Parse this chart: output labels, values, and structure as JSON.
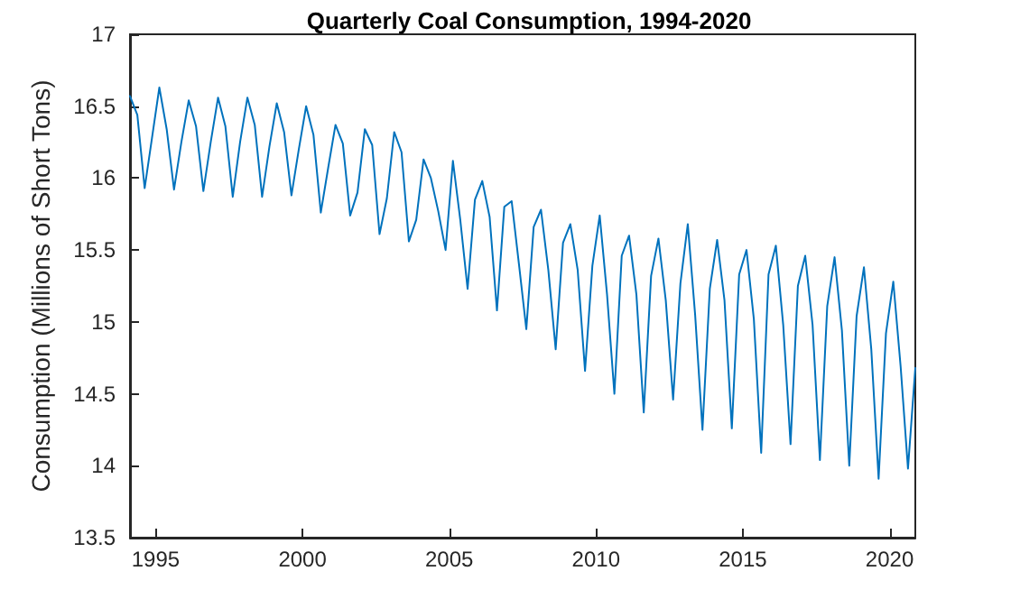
{
  "chart_data": {
    "type": "line",
    "title": "Quarterly Coal Consumption, 1994-2020",
    "ylabel": "Consumption (Millions of Short Tons)",
    "x": [
      1994.125,
      1994.375,
      1994.625,
      1994.875,
      1995.125,
      1995.375,
      1995.625,
      1995.875,
      1996.125,
      1996.375,
      1996.625,
      1996.875,
      1997.125,
      1997.375,
      1997.625,
      1997.875,
      1998.125,
      1998.375,
      1998.625,
      1998.875,
      1999.125,
      1999.375,
      1999.625,
      1999.875,
      2000.125,
      2000.375,
      2000.625,
      2000.875,
      2001.125,
      2001.375,
      2001.625,
      2001.875,
      2002.125,
      2002.375,
      2002.625,
      2002.875,
      2003.125,
      2003.375,
      2003.625,
      2003.875,
      2004.125,
      2004.375,
      2004.625,
      2004.875,
      2005.125,
      2005.375,
      2005.625,
      2005.875,
      2006.125,
      2006.375,
      2006.625,
      2006.875,
      2007.125,
      2007.375,
      2007.625,
      2007.875,
      2008.125,
      2008.375,
      2008.625,
      2008.875,
      2009.125,
      2009.375,
      2009.625,
      2009.875,
      2010.125,
      2010.375,
      2010.625,
      2010.875,
      2011.125,
      2011.375,
      2011.625,
      2011.875,
      2012.125,
      2012.375,
      2012.625,
      2012.875,
      2013.125,
      2013.375,
      2013.625,
      2013.875,
      2014.125,
      2014.375,
      2014.625,
      2014.875,
      2015.125,
      2015.375,
      2015.625,
      2015.875,
      2016.125,
      2016.375,
      2016.625,
      2016.875,
      2017.125,
      2017.375,
      2017.625,
      2017.875,
      2018.125,
      2018.375,
      2018.625,
      2018.875,
      2019.125,
      2019.375,
      2019.625,
      2019.875,
      2020.125,
      2020.375,
      2020.625,
      2020.875
    ],
    "series": [
      {
        "color": "#0072bd",
        "values": [
          16.57,
          16.44,
          15.93,
          16.28,
          16.63,
          16.34,
          15.92,
          16.25,
          16.54,
          16.36,
          15.91,
          16.25,
          16.56,
          16.36,
          15.87,
          16.25,
          16.56,
          16.37,
          15.87,
          16.22,
          16.52,
          16.32,
          15.88,
          16.2,
          16.5,
          16.3,
          15.76,
          16.07,
          16.37,
          16.24,
          15.74,
          15.9,
          16.34,
          16.23,
          15.61,
          15.86,
          16.32,
          16.18,
          15.56,
          15.71,
          16.13,
          16.0,
          15.77,
          15.5,
          16.12,
          15.71,
          15.23,
          15.85,
          15.98,
          15.73,
          15.08,
          15.8,
          15.84,
          15.4,
          14.95,
          15.66,
          15.78,
          15.36,
          14.81,
          15.55,
          15.68,
          15.36,
          14.66,
          15.39,
          15.74,
          15.19,
          14.5,
          15.46,
          15.6,
          15.19,
          14.37,
          15.32,
          15.58,
          15.15,
          14.46,
          15.27,
          15.68,
          15.05,
          14.25,
          15.23,
          15.57,
          15.15,
          14.26,
          15.33,
          15.5,
          15.02,
          14.09,
          15.33,
          15.53,
          14.98,
          14.15,
          15.25,
          15.46,
          14.98,
          14.04,
          15.11,
          15.45,
          14.94,
          14.0,
          15.04,
          15.38,
          14.81,
          13.91,
          14.92,
          15.28,
          14.69,
          13.98,
          14.68
        ]
      }
    ],
    "xlim": [
      1994.125,
      2020.875
    ],
    "xticks": [
      1995,
      2000,
      2005,
      2010,
      2015,
      2020
    ],
    "ylim": [
      13.5,
      17
    ],
    "yticks": [
      13.5,
      14,
      14.5,
      15,
      15.5,
      16,
      16.5,
      17
    ],
    "grid": false,
    "marker": "none",
    "line_style": "solid"
  }
}
